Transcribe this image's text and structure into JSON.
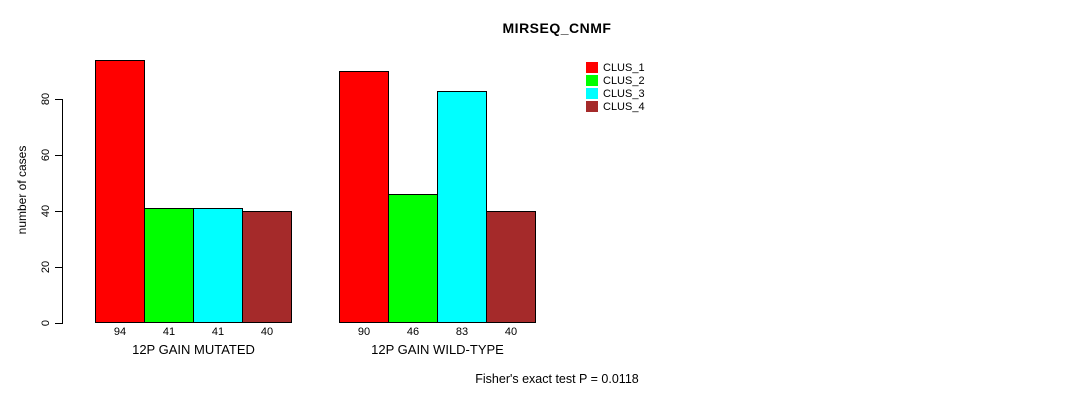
{
  "figure": {
    "title": "MIRSEQ_CNMF",
    "footer": "Fisher's exact test P = 0.0118"
  },
  "chart_data": {
    "type": "bar",
    "title": "MIRSEQ_CNMF",
    "xlabel": "",
    "ylabel": "number of cases",
    "ylim": [
      0,
      94
    ],
    "yticks": [
      0,
      20,
      40,
      60,
      80
    ],
    "grid": false,
    "legend_position": "top-right",
    "categories": [
      "12P GAIN MUTATED",
      "12P GAIN WILD-TYPE"
    ],
    "series": [
      {
        "name": "CLUS_1",
        "color": "#FF0000",
        "values": [
          94,
          90
        ]
      },
      {
        "name": "CLUS_2",
        "color": "#00FF00",
        "values": [
          41,
          46
        ]
      },
      {
        "name": "CLUS_3",
        "color": "#00FFFF",
        "values": [
          41,
          83
        ]
      },
      {
        "name": "CLUS_4",
        "color": "#A52A2A",
        "values": [
          40,
          40
        ]
      }
    ],
    "bar_value_labels": [
      [
        94,
        41,
        41,
        40
      ],
      [
        90,
        46,
        83,
        40
      ]
    ],
    "annotation": "Fisher's exact test P = 0.0118",
    "bar_border_color": "#000000",
    "background_color": "#FFFFFF"
  }
}
